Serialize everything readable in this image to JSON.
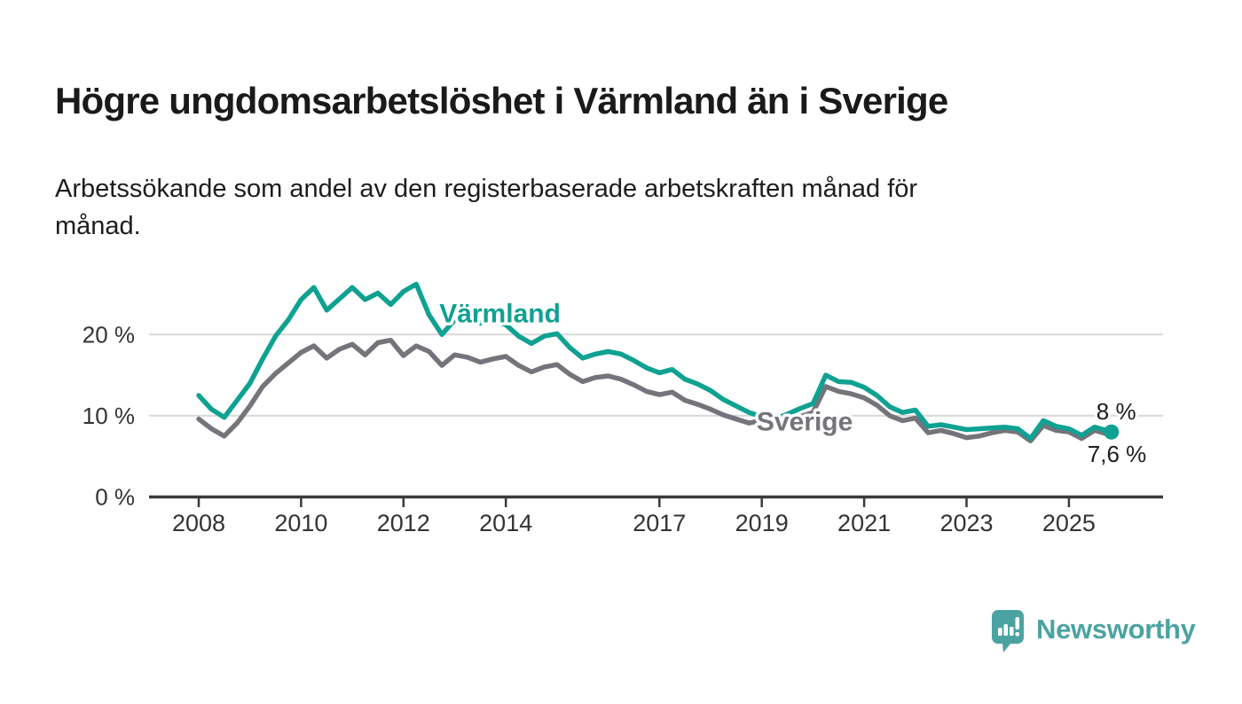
{
  "title": "Högre ungdomsarbetslöshet i Värmland än i Sverige",
  "subtitle": "Arbetssökande som andel av den registerbaserade arbetskraften månad för månad.",
  "logo": {
    "wordmark": "Newsworthy",
    "color": "#4ba3a1",
    "icon": "speech-bubble-bar-chart-icon"
  },
  "colors": {
    "varmland_teal": "#0fa192",
    "sverige_gray": "#75747a",
    "axis": "#3b3b3b",
    "gridline": "#d8d8d8",
    "tick_text": "#333333",
    "annotation_text": "#1d1d1d",
    "background": "#ffffff"
  },
  "chart_data": {
    "type": "line",
    "title": "Högre ungdomsarbetslöshet i Värmland än i Sverige",
    "xlabel": "",
    "ylabel": "",
    "x_unit": "year (monthly data, quarterly approximation)",
    "x_range": [
      2007.5,
      2026.3
    ],
    "ylim": [
      0,
      28
    ],
    "grid": "horizontal",
    "legend_position": "inline-labels-on-lines",
    "y_ticks": [
      {
        "value": 20,
        "label": "20 %"
      },
      {
        "value": 10,
        "label": "10 %"
      },
      {
        "value": 0,
        "label": "0 %"
      }
    ],
    "x_ticks": [
      {
        "year": 2008,
        "label": "2008"
      },
      {
        "year": 2010,
        "label": "2010"
      },
      {
        "year": 2012,
        "label": "2012"
      },
      {
        "year": 2014,
        "label": "2014"
      },
      {
        "year": 2017,
        "label": "2017"
      },
      {
        "year": 2019,
        "label": "2019"
      },
      {
        "year": 2021,
        "label": "2021"
      },
      {
        "year": 2023,
        "label": "2023"
      },
      {
        "year": 2025,
        "label": "2025"
      }
    ],
    "series": [
      {
        "name": "Sverige",
        "color": "#75747a",
        "label_at": {
          "year": 2018.9,
          "pct": 8.2
        },
        "end_label": "7,6 %",
        "end_value": 7.6,
        "end_dot": false,
        "points": [
          [
            2008,
            9.6
          ],
          [
            2008.25,
            8.4
          ],
          [
            2008.5,
            7.5
          ],
          [
            2008.75,
            9.1
          ],
          [
            2009,
            11.2
          ],
          [
            2009.25,
            13.6
          ],
          [
            2009.5,
            15.2
          ],
          [
            2009.75,
            16.5
          ],
          [
            2010,
            17.8
          ],
          [
            2010.25,
            18.6
          ],
          [
            2010.5,
            17.1
          ],
          [
            2010.75,
            18.2
          ],
          [
            2011,
            18.8
          ],
          [
            2011.25,
            17.5
          ],
          [
            2011.5,
            19
          ],
          [
            2011.75,
            19.3
          ],
          [
            2012,
            17.4
          ],
          [
            2012.25,
            18.6
          ],
          [
            2012.5,
            17.9
          ],
          [
            2012.75,
            16.2
          ],
          [
            2013,
            17.5
          ],
          [
            2013.25,
            17.2
          ],
          [
            2013.5,
            16.6
          ],
          [
            2013.75,
            17
          ],
          [
            2014,
            17.3
          ],
          [
            2014.25,
            16.2
          ],
          [
            2014.5,
            15.4
          ],
          [
            2014.75,
            16
          ],
          [
            2015,
            16.3
          ],
          [
            2015.25,
            15.1
          ],
          [
            2015.5,
            14.2
          ],
          [
            2015.75,
            14.7
          ],
          [
            2016,
            14.9
          ],
          [
            2016.25,
            14.5
          ],
          [
            2016.5,
            13.8
          ],
          [
            2016.75,
            13
          ],
          [
            2017,
            12.6
          ],
          [
            2017.25,
            12.9
          ],
          [
            2017.5,
            11.9
          ],
          [
            2017.75,
            11.4
          ],
          [
            2018,
            10.8
          ],
          [
            2018.25,
            10.1
          ],
          [
            2018.5,
            9.6
          ],
          [
            2018.75,
            9.1
          ],
          [
            2019,
            9.4
          ],
          [
            2019.25,
            9.2
          ],
          [
            2019.5,
            9.6
          ],
          [
            2019.75,
            9.9
          ],
          [
            2020,
            10.4
          ],
          [
            2020.25,
            13.6
          ],
          [
            2020.5,
            13
          ],
          [
            2020.75,
            12.7
          ],
          [
            2021,
            12.2
          ],
          [
            2021.25,
            11.3
          ],
          [
            2021.5,
            10
          ],
          [
            2021.75,
            9.4
          ],
          [
            2022,
            9.7
          ],
          [
            2022.25,
            7.9
          ],
          [
            2022.5,
            8.2
          ],
          [
            2022.75,
            7.8
          ],
          [
            2023,
            7.3
          ],
          [
            2023.25,
            7.5
          ],
          [
            2023.5,
            7.9
          ],
          [
            2023.75,
            8.2
          ],
          [
            2024,
            8
          ],
          [
            2024.25,
            6.9
          ],
          [
            2024.5,
            8.8
          ],
          [
            2024.75,
            8.2
          ],
          [
            2025,
            8
          ],
          [
            2025.25,
            7.2
          ],
          [
            2025.5,
            8.2
          ],
          [
            2025.83,
            7.6
          ]
        ]
      },
      {
        "name": "Värmland",
        "color": "#0fa192",
        "label_at": {
          "year": 2012.7,
          "pct": 21.5
        },
        "end_label": "8 %",
        "end_value": 8.0,
        "end_dot": true,
        "points": [
          [
            2008,
            12.5
          ],
          [
            2008.25,
            10.8
          ],
          [
            2008.5,
            9.8
          ],
          [
            2008.75,
            11.9
          ],
          [
            2009,
            14
          ],
          [
            2009.25,
            17
          ],
          [
            2009.5,
            19.8
          ],
          [
            2009.75,
            21.8
          ],
          [
            2010,
            24.3
          ],
          [
            2010.25,
            25.8
          ],
          [
            2010.5,
            23
          ],
          [
            2010.75,
            24.4
          ],
          [
            2011,
            25.8
          ],
          [
            2011.25,
            24.3
          ],
          [
            2011.5,
            25.1
          ],
          [
            2011.75,
            23.7
          ],
          [
            2012,
            25.3
          ],
          [
            2012.25,
            26.2
          ],
          [
            2012.5,
            22.4
          ],
          [
            2012.75,
            20
          ],
          [
            2013,
            21.8
          ],
          [
            2013.25,
            22.3
          ],
          [
            2013.5,
            21.4
          ],
          [
            2013.75,
            21.8
          ],
          [
            2014,
            21.2
          ],
          [
            2014.25,
            19.8
          ],
          [
            2014.5,
            18.9
          ],
          [
            2014.75,
            19.8
          ],
          [
            2015,
            20.1
          ],
          [
            2015.25,
            18.4
          ],
          [
            2015.5,
            17.1
          ],
          [
            2015.75,
            17.6
          ],
          [
            2016,
            17.9
          ],
          [
            2016.25,
            17.6
          ],
          [
            2016.5,
            16.8
          ],
          [
            2016.75,
            15.9
          ],
          [
            2017,
            15.3
          ],
          [
            2017.25,
            15.7
          ],
          [
            2017.5,
            14.5
          ],
          [
            2017.75,
            13.9
          ],
          [
            2018,
            13.1
          ],
          [
            2018.25,
            12
          ],
          [
            2018.5,
            11.2
          ],
          [
            2018.75,
            10.4
          ],
          [
            2019,
            9.9
          ],
          [
            2019.25,
            9.6
          ],
          [
            2019.5,
            10.2
          ],
          [
            2019.75,
            10.9
          ],
          [
            2020,
            11.5
          ],
          [
            2020.25,
            15
          ],
          [
            2020.5,
            14.2
          ],
          [
            2020.75,
            14.1
          ],
          [
            2021,
            13.5
          ],
          [
            2021.25,
            12.5
          ],
          [
            2021.5,
            11.1
          ],
          [
            2021.75,
            10.4
          ],
          [
            2022,
            10.7
          ],
          [
            2022.25,
            8.7
          ],
          [
            2022.5,
            8.9
          ],
          [
            2022.75,
            8.6
          ],
          [
            2023,
            8.3
          ],
          [
            2023.25,
            8.4
          ],
          [
            2023.5,
            8.5
          ],
          [
            2023.75,
            8.6
          ],
          [
            2024,
            8.4
          ],
          [
            2024.25,
            7.2
          ],
          [
            2024.5,
            9.4
          ],
          [
            2024.75,
            8.7
          ],
          [
            2025,
            8.4
          ],
          [
            2025.25,
            7.6
          ],
          [
            2025.5,
            8.6
          ],
          [
            2025.83,
            8
          ]
        ]
      }
    ],
    "annotations": [
      {
        "text": "8 %",
        "series": "Värmland"
      },
      {
        "text": "7,6 %",
        "series": "Sverige"
      }
    ]
  }
}
